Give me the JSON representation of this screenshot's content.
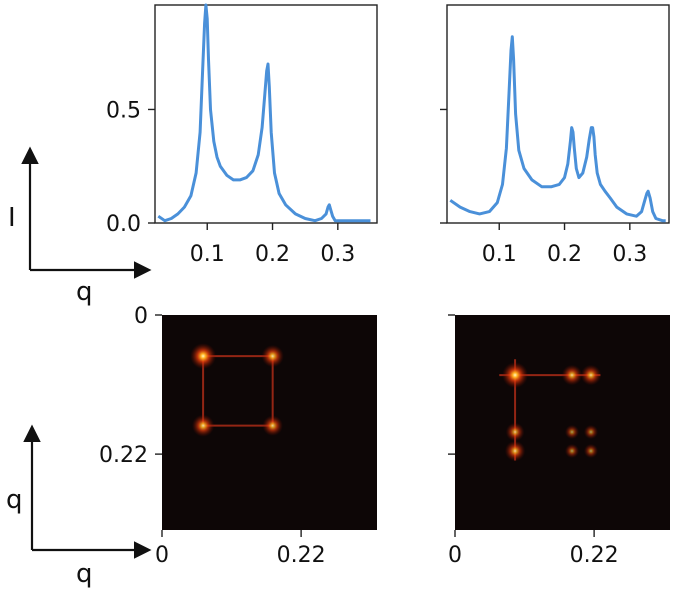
{
  "chart_data": [
    {
      "type": "line",
      "panel": "top-left",
      "xticks": [
        "0.1",
        "0.2",
        "0.3"
      ],
      "yticks": [
        "0.5",
        "0.0"
      ],
      "xlim": [
        0.02,
        0.36
      ],
      "ylim": [
        0,
        0.96
      ],
      "color": "#4a90d9",
      "series": [
        {
          "x": [
            0.025,
            0.035,
            0.045,
            0.055,
            0.065,
            0.075,
            0.083,
            0.089,
            0.093,
            0.096,
            0.098,
            0.1,
            0.102,
            0.105,
            0.11,
            0.115,
            0.12,
            0.13,
            0.14,
            0.15,
            0.16,
            0.17,
            0.178,
            0.184,
            0.188,
            0.191,
            0.193,
            0.195,
            0.198,
            0.203,
            0.21,
            0.22,
            0.235,
            0.25,
            0.265,
            0.275,
            0.282,
            0.285,
            0.287,
            0.289,
            0.292,
            0.296,
            0.305,
            0.32,
            0.34,
            0.35
          ],
          "y": [
            0.03,
            0.01,
            0.02,
            0.04,
            0.07,
            0.12,
            0.22,
            0.4,
            0.68,
            0.88,
            0.96,
            0.9,
            0.72,
            0.5,
            0.36,
            0.29,
            0.25,
            0.21,
            0.19,
            0.19,
            0.2,
            0.23,
            0.3,
            0.42,
            0.56,
            0.67,
            0.7,
            0.6,
            0.4,
            0.22,
            0.13,
            0.08,
            0.04,
            0.02,
            0.01,
            0.02,
            0.04,
            0.07,
            0.08,
            0.06,
            0.03,
            0.01,
            0.01,
            0.01,
            0.01,
            0.01
          ]
        }
      ]
    },
    {
      "type": "line",
      "panel": "top-right",
      "xticks": [
        "0.1",
        "0.2",
        "0.3"
      ],
      "yticks": [],
      "xlim": [
        0.02,
        0.36
      ],
      "ylim": [
        0,
        0.96
      ],
      "color": "#4a90d9",
      "series": [
        {
          "x": [
            0.025,
            0.04,
            0.055,
            0.07,
            0.085,
            0.097,
            0.105,
            0.111,
            0.115,
            0.118,
            0.12,
            0.122,
            0.125,
            0.13,
            0.138,
            0.15,
            0.165,
            0.18,
            0.192,
            0.2,
            0.205,
            0.209,
            0.211,
            0.213,
            0.215,
            0.218,
            0.222,
            0.228,
            0.234,
            0.238,
            0.241,
            0.243,
            0.245,
            0.247,
            0.25,
            0.255,
            0.262,
            0.27,
            0.28,
            0.295,
            0.31,
            0.318,
            0.323,
            0.326,
            0.328,
            0.331,
            0.335,
            0.34,
            0.35,
            0.355
          ],
          "y": [
            0.1,
            0.07,
            0.05,
            0.04,
            0.05,
            0.09,
            0.17,
            0.33,
            0.57,
            0.76,
            0.82,
            0.72,
            0.48,
            0.32,
            0.24,
            0.19,
            0.16,
            0.16,
            0.17,
            0.2,
            0.26,
            0.36,
            0.42,
            0.4,
            0.33,
            0.24,
            0.2,
            0.22,
            0.29,
            0.37,
            0.42,
            0.42,
            0.38,
            0.3,
            0.22,
            0.17,
            0.14,
            0.11,
            0.07,
            0.04,
            0.03,
            0.05,
            0.1,
            0.13,
            0.14,
            0.11,
            0.05,
            0.02,
            0.01,
            0.01
          ]
        }
      ]
    },
    {
      "type": "heatmap",
      "panel": "bottom-left",
      "xticks": [
        "0",
        "0.22"
      ],
      "yticks": [
        "0",
        "0.22"
      ],
      "xlim": [
        0,
        0.34
      ],
      "ylim": [
        0,
        0.34
      ],
      "peaks": [
        {
          "x": 0.065,
          "y": 0.065,
          "intensity": 1.0
        },
        {
          "x": 0.175,
          "y": 0.065,
          "intensity": 0.8
        },
        {
          "x": 0.065,
          "y": 0.175,
          "intensity": 0.8
        },
        {
          "x": 0.175,
          "y": 0.175,
          "intensity": 0.7
        }
      ],
      "lines": [
        {
          "x1": 0.065,
          "y1": 0.065,
          "x2": 0.175,
          "y2": 0.065
        },
        {
          "x1": 0.065,
          "y1": 0.175,
          "x2": 0.175,
          "y2": 0.175
        },
        {
          "x1": 0.065,
          "y1": 0.065,
          "x2": 0.065,
          "y2": 0.175
        },
        {
          "x1": 0.175,
          "y1": 0.065,
          "x2": 0.175,
          "y2": 0.175
        }
      ]
    },
    {
      "type": "heatmap",
      "panel": "bottom-right",
      "xticks": [
        "0",
        "0.22"
      ],
      "yticks": [],
      "xlim": [
        0,
        0.34
      ],
      "ylim": [
        0,
        0.34
      ],
      "peaks": [
        {
          "x": 0.095,
          "y": 0.095,
          "intensity": 1.0
        },
        {
          "x": 0.185,
          "y": 0.095,
          "intensity": 0.7
        },
        {
          "x": 0.215,
          "y": 0.095,
          "intensity": 0.7
        },
        {
          "x": 0.095,
          "y": 0.185,
          "intensity": 0.6
        },
        {
          "x": 0.095,
          "y": 0.215,
          "intensity": 0.7
        },
        {
          "x": 0.185,
          "y": 0.185,
          "intensity": 0.35
        },
        {
          "x": 0.215,
          "y": 0.185,
          "intensity": 0.35
        },
        {
          "x": 0.185,
          "y": 0.215,
          "intensity": 0.35
        },
        {
          "x": 0.215,
          "y": 0.215,
          "intensity": 0.35
        }
      ],
      "lines": [
        {
          "x1": 0.07,
          "y1": 0.095,
          "x2": 0.23,
          "y2": 0.095
        },
        {
          "x1": 0.095,
          "y1": 0.07,
          "x2": 0.095,
          "y2": 0.23
        }
      ]
    }
  ],
  "axes_legend": {
    "top": {
      "x_label": "q",
      "y_label": "I"
    },
    "bottom": {
      "x_label": "q",
      "y_label": "q"
    }
  }
}
